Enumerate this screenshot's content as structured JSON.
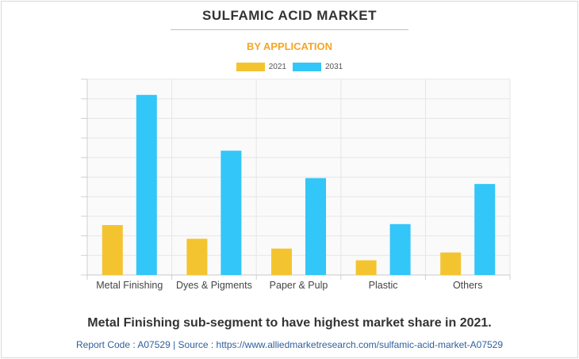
{
  "header": {
    "title": "SULFAMIC ACID MARKET",
    "subtitle": "BY APPLICATION"
  },
  "chart_data": {
    "type": "bar",
    "title": "SULFAMIC ACID MARKET",
    "subtitle": "BY APPLICATION",
    "categories": [
      "Metal Finishing",
      "Dyes & Pigments",
      "Paper & Pulp",
      "Plastic",
      "Others"
    ],
    "series": [
      {
        "name": "2021",
        "color": "#f4c430",
        "values": [
          2.55,
          1.85,
          1.35,
          0.75,
          1.15
        ]
      },
      {
        "name": "2031",
        "color": "#33c6f8",
        "values": [
          9.2,
          6.35,
          4.95,
          2.6,
          4.65
        ]
      }
    ],
    "ylim": [
      0,
      10
    ],
    "grid": true,
    "legend": "top-center",
    "ytick_labels_visible": false
  },
  "footer": {
    "caption": "Metal Finishing sub-segment to have highest market share in 2021.",
    "source": "Report Code : A07529  |  Source : https://www.alliedmarketresearch.com/sulfamic-acid-market-A07529"
  }
}
